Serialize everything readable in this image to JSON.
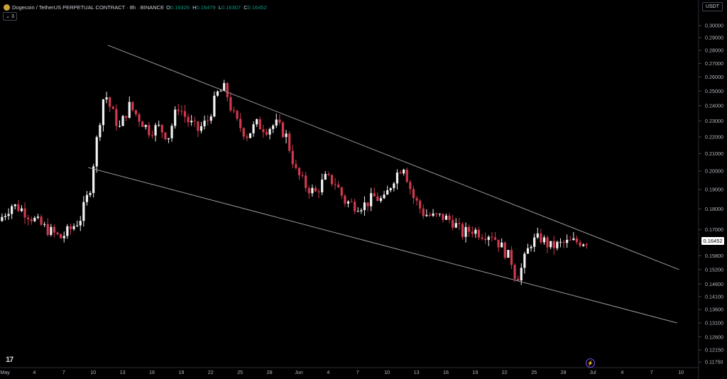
{
  "header": {
    "symbol": "Dogecoin / TetherUS PERPETUAL CONTRACT · 8h · BINANCE",
    "o_label": "O",
    "o": "0.16326",
    "h_label": "H",
    "h": "0.16479",
    "l_label": "L",
    "l": "0.16307",
    "c_label": "C",
    "c": "0.16452",
    "indicator_toggle": "3",
    "currency": "USDT"
  },
  "last_price_label": "0.16452",
  "colors": {
    "up": "#f2f2f2",
    "down": "#d1394e",
    "grid": "#000000",
    "trend": "#9a9a9a",
    "axis_text": "#b2b5be"
  },
  "chart_data": {
    "type": "candlestick",
    "interval": "8h",
    "price_axis": {
      "scale": "log",
      "ticks": [
        "0.30000",
        "0.29000",
        "0.28000",
        "0.27000",
        "0.26000",
        "0.25000",
        "0.24000",
        "0.23000",
        "0.22000",
        "0.21000",
        "0.20000",
        "0.19000",
        "0.18000",
        "0.17000",
        "0.15800",
        "0.15200",
        "0.14600",
        "0.14100",
        "0.13600",
        "0.13100",
        "0.12600",
        "0.12150",
        "0.11750"
      ]
    },
    "time_axis": {
      "ticks": [
        "May",
        "4",
        "7",
        "10",
        "13",
        "16",
        "19",
        "22",
        "25",
        "28",
        "Jun",
        "4",
        "7",
        "10",
        "13",
        "16",
        "19",
        "22",
        "25",
        "28",
        "Jul",
        "4",
        "7",
        "10"
      ]
    },
    "trendlines": [
      {
        "name": "upper",
        "from": {
          "day": 10.5,
          "price": 0.284
        },
        "to": {
          "day": 68.8,
          "price": 0.152
        }
      },
      {
        "name": "lower",
        "from": {
          "day": 8.5,
          "price": 0.202
        },
        "to": {
          "day": 68.6,
          "price": 0.131
        }
      }
    ],
    "anchors": [
      [
        -0.3,
        0.174
      ],
      [
        1,
        0.182
      ],
      [
        2,
        0.18
      ],
      [
        3,
        0.176
      ],
      [
        4,
        0.172
      ],
      [
        5,
        0.169
      ],
      [
        6,
        0.166
      ],
      [
        7,
        0.17
      ],
      [
        8,
        0.175
      ],
      [
        9,
        0.19
      ],
      [
        9.5,
        0.21
      ],
      [
        10,
        0.23
      ],
      [
        10.5,
        0.25
      ],
      [
        11,
        0.24
      ],
      [
        12,
        0.225
      ],
      [
        13,
        0.24
      ],
      [
        14,
        0.232
      ],
      [
        15,
        0.224
      ],
      [
        16,
        0.226
      ],
      [
        17,
        0.22
      ],
      [
        18,
        0.24
      ],
      [
        19,
        0.23
      ],
      [
        20,
        0.224
      ],
      [
        21,
        0.23
      ],
      [
        22,
        0.248
      ],
      [
        22.8,
        0.252
      ],
      [
        23.5,
        0.236
      ],
      [
        24,
        0.229
      ],
      [
        25,
        0.221
      ],
      [
        26,
        0.228
      ],
      [
        27,
        0.225
      ],
      [
        28,
        0.228
      ],
      [
        29,
        0.221
      ],
      [
        30,
        0.2
      ],
      [
        31,
        0.192
      ],
      [
        32,
        0.188
      ],
      [
        33,
        0.196
      ],
      [
        34,
        0.194
      ],
      [
        35,
        0.184
      ],
      [
        36,
        0.182
      ],
      [
        37,
        0.182
      ],
      [
        38,
        0.186
      ],
      [
        39,
        0.184
      ],
      [
        40,
        0.196
      ],
      [
        41,
        0.204
      ],
      [
        41.5,
        0.194
      ],
      [
        42,
        0.186
      ],
      [
        43,
        0.178
      ],
      [
        44,
        0.176
      ],
      [
        45,
        0.176
      ],
      [
        46,
        0.174
      ],
      [
        47,
        0.168
      ],
      [
        48,
        0.17
      ],
      [
        49,
        0.168
      ],
      [
        50,
        0.168
      ],
      [
        51,
        0.162
      ],
      [
        52,
        0.156
      ],
      [
        52.5,
        0.148
      ],
      [
        53,
        0.152
      ],
      [
        54,
        0.164
      ],
      [
        55,
        0.166
      ],
      [
        56,
        0.162
      ],
      [
        57,
        0.163
      ],
      [
        58,
        0.164
      ],
      [
        59.4,
        0.1645
      ]
    ]
  }
}
